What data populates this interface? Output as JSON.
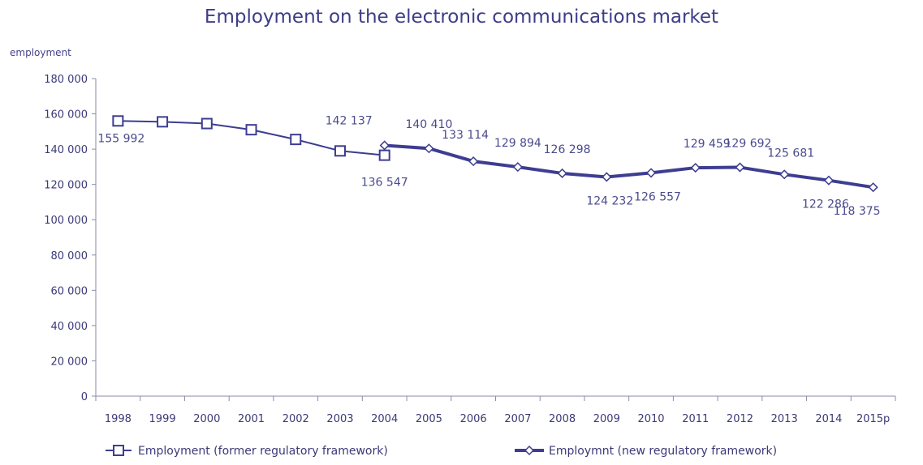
{
  "chart_data": {
    "type": "line",
    "title": "Employment on the electronic communications market",
    "ylabel": "employment",
    "xlabel": "",
    "categories": [
      "1998",
      "1999",
      "2000",
      "2001",
      "2002",
      "2003",
      "2004",
      "2005",
      "2006",
      "2007",
      "2008",
      "2009",
      "2010",
      "2011",
      "2012",
      "2013",
      "2014",
      "2015p"
    ],
    "ylim": [
      0,
      180000
    ],
    "yticks": [
      0,
      20000,
      40000,
      60000,
      80000,
      100000,
      120000,
      140000,
      160000,
      180000
    ],
    "ytick_labels": [
      "0",
      "20 000",
      "40 000",
      "60 000",
      "80 000",
      "100 000",
      "120 000",
      "140 000",
      "160 000",
      "180 000"
    ],
    "grid": false,
    "legend_position": "bottom",
    "colors": {
      "series": "#3d3d92",
      "text": "#3d3d88",
      "axis": "#8a8aaa"
    },
    "series": [
      {
        "name": "Employment (former regulatory framework)",
        "marker": "square",
        "values": [
          155992,
          155500,
          154500,
          151000,
          145500,
          139000,
          136547,
          null,
          null,
          null,
          null,
          null,
          null,
          null,
          null,
          null,
          null,
          null
        ],
        "labels": [
          "155 992",
          null,
          null,
          null,
          null,
          null,
          "136 547",
          null,
          null,
          null,
          null,
          null,
          null,
          null,
          null,
          null,
          null,
          null
        ]
      },
      {
        "name": "Employmnt (new regulatory framework)",
        "marker": "diamond",
        "values": [
          null,
          null,
          null,
          null,
          null,
          null,
          142137,
          140410,
          133114,
          129894,
          126298,
          124232,
          126557,
          129459,
          129692,
          125681,
          122286,
          118375
        ],
        "labels": [
          null,
          null,
          null,
          null,
          null,
          null,
          "142 137",
          "140 410",
          "133 114",
          "129 894",
          "126 298",
          "124 232",
          "126 557",
          "129 459",
          "129 692",
          "125 681",
          "122 286",
          "118 375"
        ]
      }
    ]
  }
}
